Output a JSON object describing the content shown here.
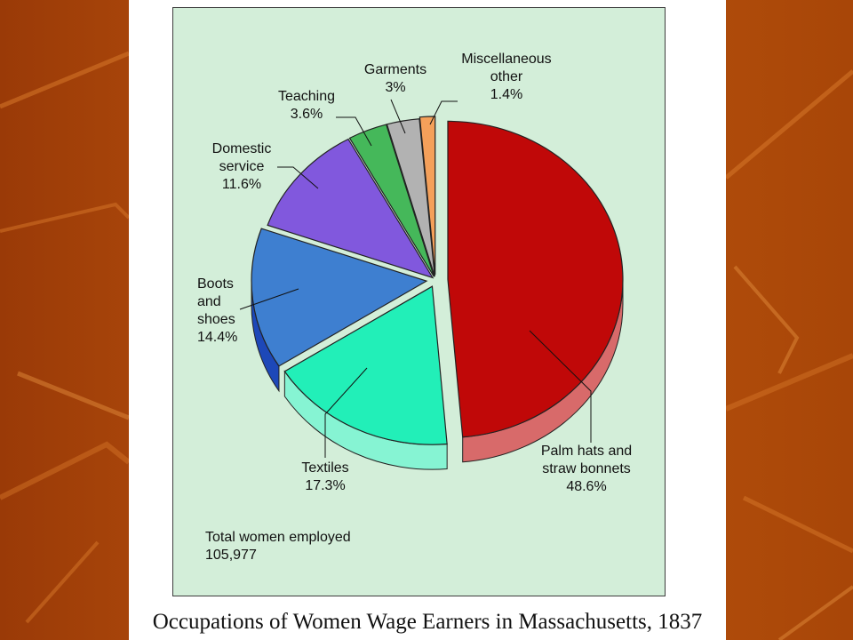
{
  "chart_data": {
    "type": "pie",
    "title": "Occupations of Women Wage Earners in Massachusetts, 1837",
    "slices": [
      {
        "label": "Palm hats and straw bonnets",
        "value": 48.6,
        "value_label": "48.6%",
        "color": "#c00808",
        "side_color": "#d86a6a"
      },
      {
        "label": "Textiles",
        "value": 17.3,
        "value_label": "17.3%",
        "color": "#22efb8",
        "side_color": "#86f4d3"
      },
      {
        "label": "Boots and shoes",
        "value": 14.4,
        "value_label": "14.4%",
        "color": "#3e7fd0",
        "side_color": "#1d48b8"
      },
      {
        "label": "Domestic service",
        "value": 11.6,
        "value_label": "11.6%",
        "color": "#8158dd",
        "side_color": "#6a3fc9"
      },
      {
        "label": "Teaching",
        "value": 3.6,
        "value_label": "3.6%",
        "color": "#45b85a",
        "side_color": "#2f8a40"
      },
      {
        "label": "Garments",
        "value": 3.0,
        "value_label": "3%",
        "color": "#b2b2b2",
        "side_color": "#6f6f6f"
      },
      {
        "label": "Miscellaneous other",
        "value": 1.4,
        "value_label": "1.4%",
        "color": "#f4a05a",
        "side_color": "#c7702e"
      }
    ],
    "labels_display": {
      "palm": "Palm hats and\nstraw bonnets\n48.6%",
      "textiles": "Textiles\n17.3%",
      "boots": "Boots\nand\nshoes\n14.4%",
      "domestic": "Domestic\nservice\n11.6%",
      "teaching": "Teaching\n3.6%",
      "garments": "Garments\n3%",
      "misc": "Miscellaneous\nother\n1.4%"
    },
    "note": "Total women employed\n105,977"
  }
}
